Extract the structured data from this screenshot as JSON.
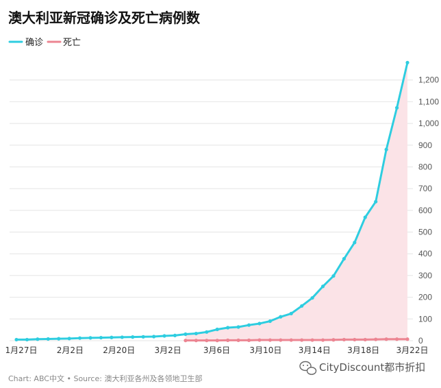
{
  "chart_data": {
    "type": "line",
    "title": "澳大利亚新冠确诊及死亡病例数",
    "x_tick_labels": [
      "1月27日",
      "2月2日",
      "2月20日",
      "3月2日",
      "3月6日",
      "3月10日",
      "3月14日",
      "3月18日",
      "3月22日"
    ],
    "y_ticks": [
      0,
      100,
      200,
      300,
      400,
      500,
      600,
      700,
      800,
      900,
      1000,
      1100,
      1200
    ],
    "y_tick_labels": [
      "0",
      "100",
      "200",
      "300",
      "400",
      "500",
      "600",
      "700",
      "800",
      "900",
      "1,000",
      "1,100",
      "1,200"
    ],
    "ylim": [
      0,
      1300
    ],
    "grid": true,
    "legend_position": "top-left",
    "colors": {
      "confirmed": "#2ecde0",
      "deaths": "#ec8592",
      "deaths_fill": "#fbe3e7"
    },
    "series": [
      {
        "name": "确诊",
        "values": [
          5,
          5,
          7,
          8,
          9,
          10,
          12,
          13,
          14,
          15,
          16,
          17,
          18,
          19,
          22,
          24,
          30,
          33,
          40,
          52,
          60,
          63,
          72,
          79,
          90,
          110,
          125,
          160,
          197,
          250,
          298,
          377,
          452,
          568,
          640,
          880,
          1072,
          1280
        ]
      },
      {
        "name": "死亡",
        "values": [
          null,
          null,
          null,
          null,
          null,
          null,
          null,
          null,
          null,
          null,
          null,
          null,
          null,
          null,
          null,
          null,
          1,
          1,
          1,
          1,
          2,
          2,
          2,
          3,
          3,
          3,
          3,
          3,
          3,
          3,
          4,
          5,
          5,
          5,
          6,
          7,
          7,
          7
        ]
      }
    ]
  },
  "source_text": "Chart: ABC中文 • Source: 澳大利亚各州及各领地卫生部",
  "watermark_text": "CityDiscount都市折扣"
}
